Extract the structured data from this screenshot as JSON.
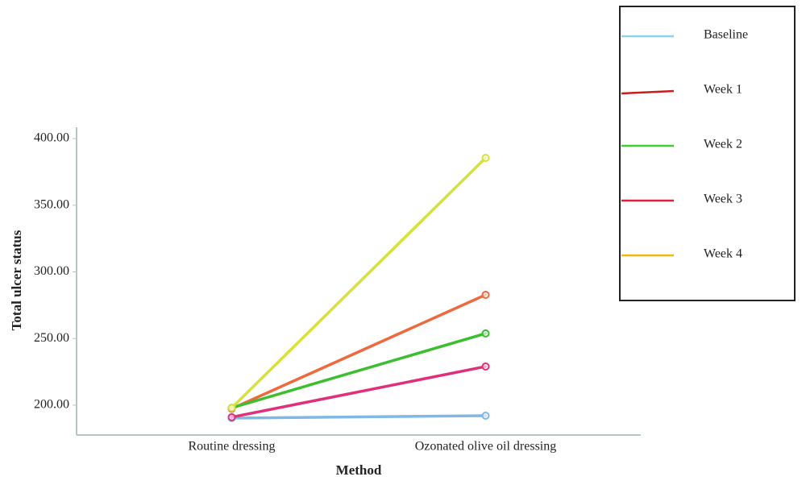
{
  "chart_data": {
    "type": "line",
    "x_label": "Method",
    "y_label": "Total ulcer status",
    "categories": [
      "Routine dressing",
      "Ozonated olive oil dressing"
    ],
    "series": [
      {
        "name": "Baseline",
        "color": "#7fb8e6",
        "legend_color": "#8fd0ea",
        "values": [
          190.3,
          192.1
        ]
      },
      {
        "name": "Week 1",
        "color": "#ee6a3e",
        "legend_color": "#c81e1e",
        "values": [
          197.3,
          282.8
        ]
      },
      {
        "name": "Week 2",
        "color": "#3cbf2e",
        "legend_color": "#3ccf2e",
        "values": [
          198.0,
          253.8
        ]
      },
      {
        "name": "Week 3",
        "color": "#e0307a",
        "legend_color": "#e02040",
        "values": [
          191.0,
          229.0
        ]
      },
      {
        "name": "Week 4",
        "color": "#d6e23a",
        "legend_color": "#f2b90c",
        "values": [
          198.0,
          385.5
        ]
      }
    ],
    "ylim": [
      177.6,
      408.5
    ],
    "yticks": [
      {
        "value": 200,
        "label": "200.00"
      },
      {
        "value": 250,
        "label": "250.00"
      },
      {
        "value": 300,
        "label": "300.00"
      },
      {
        "value": 350,
        "label": "350.00"
      },
      {
        "value": 400,
        "label": "400.00"
      }
    ]
  }
}
